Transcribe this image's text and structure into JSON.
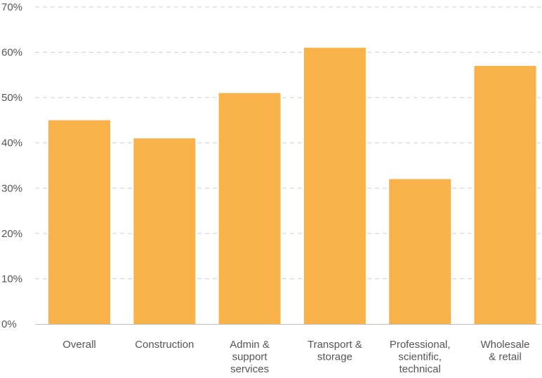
{
  "chart_data": {
    "type": "bar",
    "categories": [
      [
        "Overall"
      ],
      [
        "Construction"
      ],
      [
        "Admin &",
        "support",
        "services"
      ],
      [
        "Transport &",
        "storage"
      ],
      [
        "Professional,",
        "scientific,",
        "technical"
      ],
      [
        "Wholesale",
        "& retail"
      ]
    ],
    "values": [
      45,
      41,
      51,
      61,
      32,
      57
    ],
    "y_ticks": [
      "0%",
      "10%",
      "20%",
      "30%",
      "40%",
      "50%",
      "60%",
      "70%"
    ],
    "ylim": [
      0,
      70
    ],
    "grid": true,
    "bar_color": "#F9B249",
    "title": "",
    "xlabel": "",
    "ylabel": ""
  }
}
